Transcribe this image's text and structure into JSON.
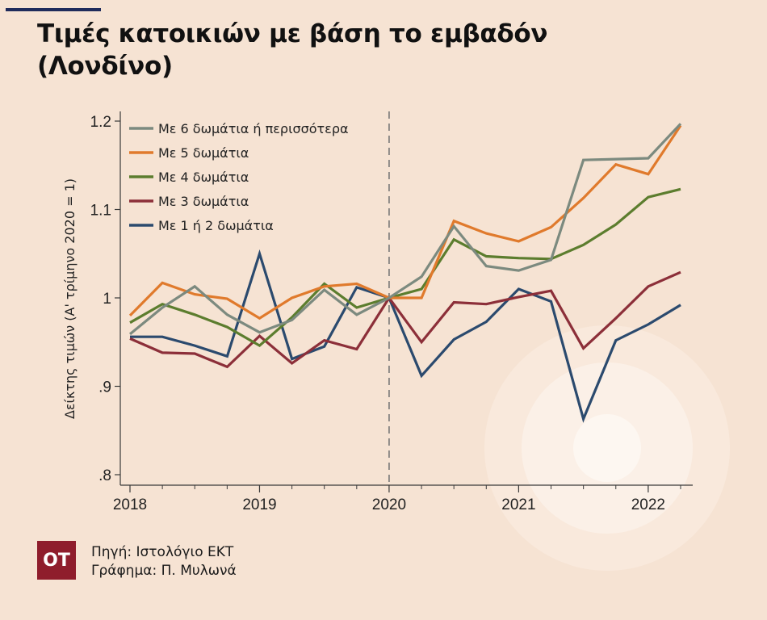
{
  "title": {
    "line1": "Τιμές κατοικιών με βάση το εμβαδόν",
    "line2": "(Λονδίνο)"
  },
  "logo_text": "OT",
  "source": {
    "line1": "Πηγή: Ιστολόγιο ΕΚΤ",
    "line2": "Γράφημα: Π. Μυλωνά"
  },
  "colors": {
    "background": "#f6e3d3",
    "accent_rule": "#1f2b5b",
    "logo": "#8f1d2c"
  },
  "chart_data": {
    "type": "line",
    "title": "",
    "xlabel": "",
    "ylabel": "Δείκτης τιμών (Α' τρίμηνο 2020 = 1)",
    "ylim": [
      0.8,
      1.2
    ],
    "xlim": [
      2018,
      2022.25
    ],
    "grid": false,
    "legend_position": "top-left",
    "reference_line": {
      "x": 2020,
      "style": "dashed"
    },
    "y_ticks": [
      {
        "value": 0.8,
        "label": ".8"
      },
      {
        "value": 0.9,
        "label": ".9"
      },
      {
        "value": 1.0,
        "label": "1"
      },
      {
        "value": 1.1,
        "label": "1.1"
      },
      {
        "value": 1.2,
        "label": "1.2"
      }
    ],
    "x_ticks": [
      {
        "value": 2018,
        "label": "2018"
      },
      {
        "value": 2019,
        "label": "2019"
      },
      {
        "value": 2020,
        "label": "2020"
      },
      {
        "value": 2021,
        "label": "2021"
      },
      {
        "value": 2022,
        "label": "2022"
      }
    ],
    "x": [
      2018,
      2018.25,
      2018.5,
      2018.75,
      2019,
      2019.25,
      2019.5,
      2019.75,
      2020,
      2020.25,
      2020.5,
      2020.75,
      2021,
      2021.25,
      2021.5,
      2021.75,
      2022,
      2022.25
    ],
    "series": [
      {
        "name": "Με 6 δωμάτια ή περισσότερα",
        "color": "#7c8a7f",
        "values": [
          0.959,
          0.989,
          1.013,
          0.981,
          0.961,
          0.975,
          1.009,
          0.981,
          1.0,
          1.024,
          1.081,
          1.036,
          1.031,
          1.043,
          1.156,
          1.157,
          1.158,
          1.197
        ]
      },
      {
        "name": "Με 5 δωμάτια",
        "color": "#e07a2c",
        "values": [
          0.98,
          1.017,
          1.004,
          0.999,
          0.977,
          1.0,
          1.013,
          1.016,
          1.0,
          1.0,
          1.087,
          1.073,
          1.064,
          1.08,
          1.113,
          1.151,
          1.14,
          1.195
        ]
      },
      {
        "name": "Με 4 δωμάτια",
        "color": "#5c7d2e",
        "values": [
          0.972,
          0.993,
          0.981,
          0.967,
          0.946,
          0.978,
          1.016,
          0.989,
          1.0,
          1.01,
          1.066,
          1.047,
          1.045,
          1.044,
          1.06,
          1.083,
          1.114,
          1.123
        ]
      },
      {
        "name": "Με 3 δωμάτια",
        "color": "#8c2f39",
        "values": [
          0.954,
          0.938,
          0.937,
          0.922,
          0.957,
          0.926,
          0.952,
          0.942,
          1.0,
          0.95,
          0.995,
          0.993,
          1.001,
          1.008,
          0.943,
          0.977,
          1.013,
          1.029
        ]
      },
      {
        "name": "Με 1 ή 2 δωμάτια",
        "color": "#2b4a6e",
        "values": [
          0.956,
          0.956,
          0.946,
          0.934,
          1.05,
          0.931,
          0.945,
          1.012,
          1.0,
          0.912,
          0.953,
          0.973,
          1.01,
          0.996,
          0.863,
          0.952,
          0.97,
          0.992
        ]
      }
    ]
  }
}
